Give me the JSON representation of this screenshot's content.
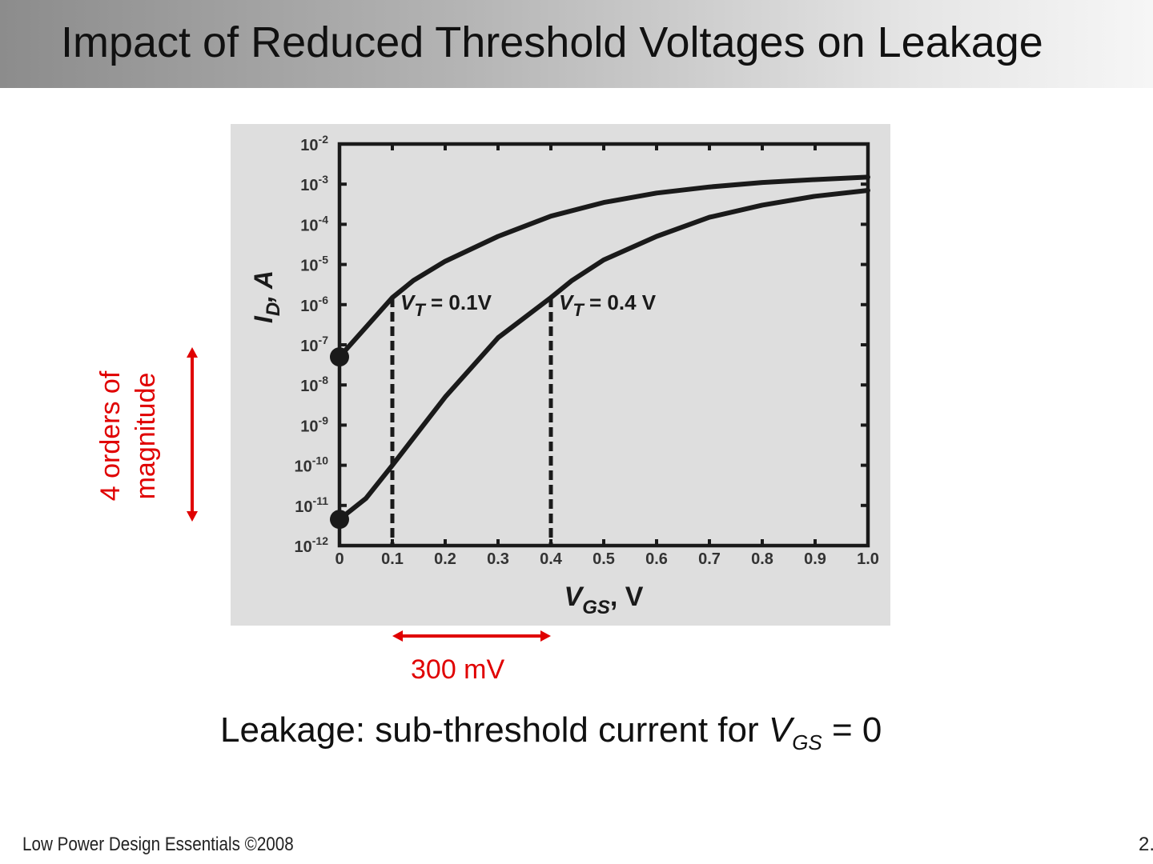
{
  "slide": {
    "title": "Impact of Reduced Threshold Voltages on Leakage",
    "annotation_left_line1": "4 orders of",
    "annotation_left_line2": "magnitude",
    "annotation_bottom": "300 mV",
    "caption_prefix": "Leakage: sub-threshold current for ",
    "caption_var": "V",
    "caption_sub": "GS",
    "caption_suffix": " = 0",
    "footer_left": "Low Power Design Essentials ©2008",
    "footer_right": "2.",
    "annotation_color": "#e00000"
  },
  "chart_data": {
    "type": "line",
    "ylabel": "I_D, A",
    "xlabel": "V_GS, V",
    "y_scale": "log",
    "xlim": [
      0,
      1.0
    ],
    "ylim": [
      1e-12,
      0.01
    ],
    "x_ticks": [
      "0",
      "0.1",
      "0.2",
      "0.3",
      "0.4",
      "0.5",
      "0.6",
      "0.7",
      "0.8",
      "0.9",
      "1.0"
    ],
    "y_ticks_exp": [
      "-2",
      "-3",
      "-4",
      "-5",
      "-6",
      "-7",
      "-8",
      "-9",
      "-10",
      "-11",
      "-12"
    ],
    "series": [
      {
        "name": "V_T = 0.1V",
        "x": [
          0,
          0.1,
          0.14,
          0.2,
          0.3,
          0.4,
          0.5,
          0.6,
          0.7,
          0.8,
          0.9,
          1.0
        ],
        "y": [
          5e-08,
          1.5e-06,
          4e-06,
          1.2e-05,
          5e-05,
          0.00016,
          0.00035,
          0.0006,
          0.00085,
          0.0011,
          0.0013,
          0.0015
        ]
      },
      {
        "name": "V_T = 0.4V",
        "x": [
          0,
          0.05,
          0.1,
          0.2,
          0.3,
          0.4,
          0.44,
          0.5,
          0.6,
          0.7,
          0.8,
          0.9,
          1.0
        ],
        "y": [
          4.5e-12,
          1.5e-11,
          1e-10,
          5e-09,
          1.5e-07,
          1.5e-06,
          4e-06,
          1.3e-05,
          5e-05,
          0.00015,
          0.0003,
          0.0005,
          0.0007
        ]
      }
    ],
    "threshold_lines": [
      {
        "x": 0.1,
        "label_var": "V",
        "label_sub": "T",
        "label_value": " = 0.1V",
        "y_top": 1.5e-06
      },
      {
        "x": 0.4,
        "label_var": "V",
        "label_sub": "T",
        "label_value": " = 0.4 V",
        "y_top": 1.5e-06
      }
    ],
    "markers": [
      {
        "x": 0,
        "y": 5e-08
      },
      {
        "x": 0,
        "y": 4.5e-12
      }
    ],
    "grid": false,
    "background": "#dedede"
  }
}
